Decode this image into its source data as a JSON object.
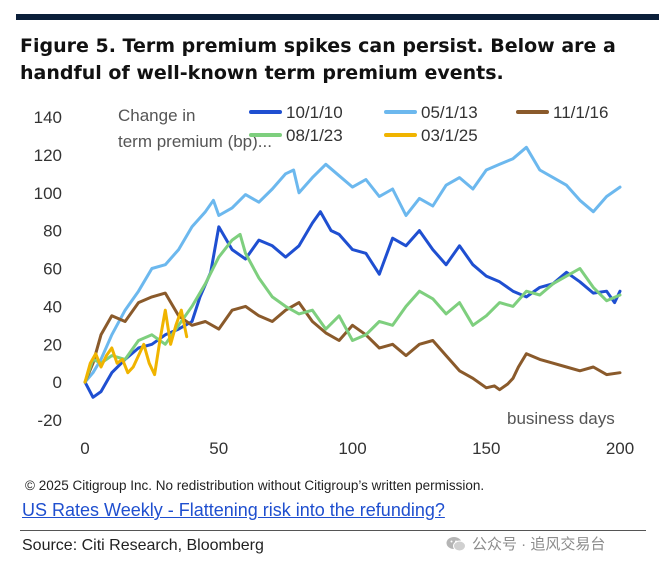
{
  "title": "Figure 5. Term premium spikes can persist. Below are a handful of well-known term premium events.",
  "copyright": "© 2025 Citigroup Inc. No redistribution without Citigroup’s written permission.",
  "report_link": "US Rates Weekly - Flattening risk into the refunding?",
  "source": "Source: Citi Research, Bloomberg",
  "watermark": "公众号 · 追风交易台",
  "chart_data": {
    "type": "line",
    "title": "",
    "ylabel_lines": [
      "Change in",
      "term premium (bp)..."
    ],
    "xlabel": "business days",
    "xlim": [
      0,
      200
    ],
    "ylim": [
      -20,
      140
    ],
    "xticks": [
      0,
      50,
      100,
      150,
      200
    ],
    "yticks": [
      -20,
      0,
      20,
      40,
      60,
      80,
      100,
      120,
      140
    ],
    "grid": false,
    "legend_position": "top",
    "series": [
      {
        "name": "10/1/10",
        "color": "#1f4fd1",
        "x": [
          0,
          3,
          6,
          10,
          15,
          20,
          25,
          30,
          35,
          40,
          43,
          47,
          50,
          55,
          60,
          65,
          70,
          75,
          80,
          85,
          88,
          92,
          95,
          100,
          105,
          110,
          115,
          120,
          125,
          130,
          135,
          140,
          145,
          150,
          155,
          160,
          165,
          170,
          175,
          180,
          185,
          190,
          195,
          198,
          200
        ],
        "y": [
          0,
          -8,
          -5,
          5,
          12,
          18,
          20,
          25,
          28,
          32,
          45,
          58,
          82,
          70,
          65,
          75,
          72,
          66,
          72,
          84,
          90,
          80,
          78,
          70,
          68,
          57,
          76,
          72,
          80,
          70,
          62,
          72,
          62,
          56,
          53,
          48,
          45,
          50,
          52,
          58,
          53,
          47,
          48,
          42,
          48
        ]
      },
      {
        "name": "05/1/13",
        "color": "#6cb8ee",
        "x": [
          0,
          3,
          6,
          10,
          15,
          20,
          25,
          30,
          35,
          40,
          45,
          48,
          50,
          55,
          60,
          65,
          70,
          75,
          78,
          80,
          85,
          90,
          95,
          100,
          105,
          110,
          115,
          120,
          125,
          130,
          135,
          140,
          145,
          150,
          155,
          160,
          165,
          170,
          175,
          180,
          185,
          190,
          195,
          200
        ],
        "y": [
          0,
          5,
          12,
          25,
          38,
          48,
          60,
          62,
          70,
          82,
          90,
          96,
          88,
          92,
          99,
          95,
          102,
          110,
          112,
          100,
          108,
          115,
          109,
          103,
          107,
          98,
          102,
          88,
          97,
          93,
          104,
          108,
          102,
          112,
          115,
          118,
          124,
          112,
          108,
          104,
          96,
          90,
          98,
          103
        ]
      },
      {
        "name": "11/1/16",
        "color": "#8a5a2b",
        "x": [
          0,
          3,
          6,
          10,
          15,
          20,
          25,
          30,
          35,
          40,
          45,
          50,
          55,
          60,
          65,
          70,
          75,
          80,
          85,
          90,
          95,
          100,
          105,
          110,
          115,
          120,
          125,
          130,
          135,
          140,
          145,
          150,
          153,
          155,
          158,
          160,
          162,
          165,
          170,
          175,
          180,
          185,
          190,
          195,
          200
        ],
        "y": [
          0,
          10,
          25,
          35,
          32,
          42,
          45,
          47,
          35,
          30,
          32,
          28,
          38,
          40,
          35,
          32,
          38,
          42,
          32,
          26,
          22,
          30,
          25,
          18,
          20,
          14,
          20,
          22,
          14,
          6,
          2,
          -3,
          -2,
          -4,
          -1,
          2,
          8,
          15,
          12,
          10,
          8,
          6,
          8,
          4,
          5
        ]
      },
      {
        "name": "08/1/23",
        "color": "#7ecf7e",
        "x": [
          0,
          3,
          6,
          10,
          15,
          20,
          25,
          30,
          35,
          40,
          45,
          50,
          55,
          58,
          60,
          65,
          70,
          75,
          80,
          85,
          90,
          95,
          100,
          105,
          110,
          115,
          120,
          125,
          130,
          135,
          140,
          145,
          150,
          155,
          160,
          165,
          170,
          175,
          180,
          185,
          190,
          195,
          200
        ],
        "y": [
          0,
          12,
          10,
          14,
          12,
          22,
          25,
          20,
          30,
          40,
          52,
          66,
          75,
          78,
          68,
          55,
          45,
          40,
          36,
          38,
          28,
          35,
          22,
          25,
          32,
          30,
          40,
          48,
          44,
          36,
          42,
          30,
          35,
          42,
          40,
          48,
          46,
          52,
          56,
          60,
          50,
          43,
          46
        ]
      },
      {
        "name": "03/1/25",
        "color": "#f0b400",
        "x": [
          0,
          2,
          4,
          6,
          8,
          10,
          12,
          14,
          16,
          18,
          20,
          22,
          24,
          26,
          28,
          30,
          32,
          34,
          36,
          38
        ],
        "y": [
          0,
          10,
          15,
          8,
          14,
          18,
          10,
          12,
          5,
          8,
          14,
          20,
          10,
          4,
          22,
          38,
          20,
          30,
          38,
          24
        ]
      }
    ]
  }
}
